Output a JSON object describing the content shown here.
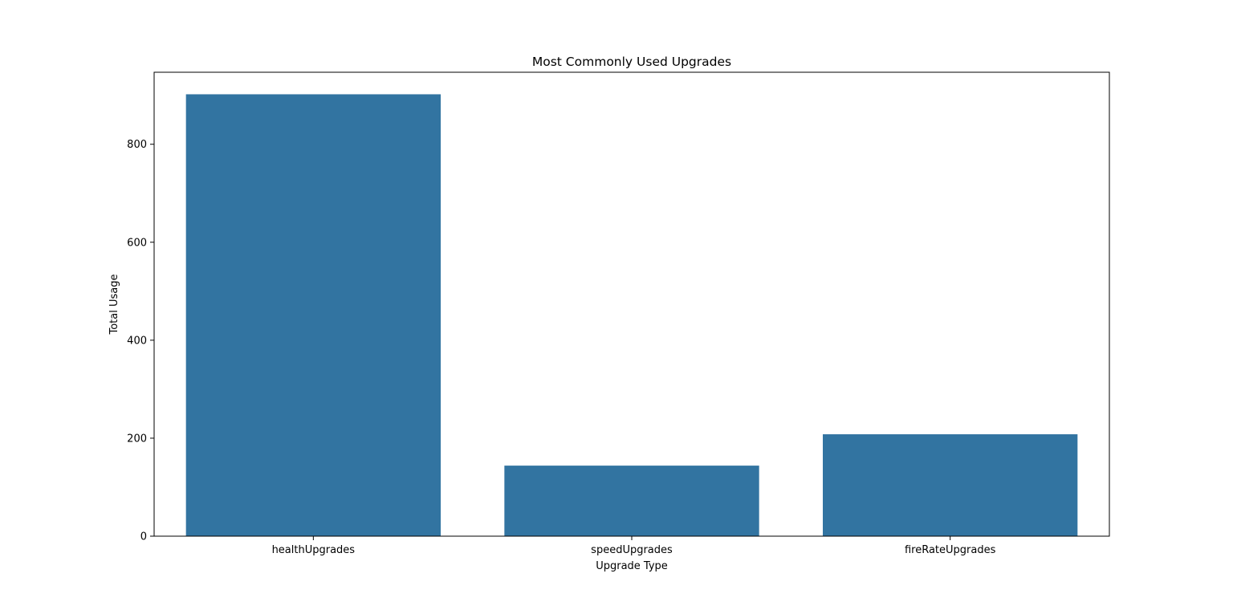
{
  "chart_data": {
    "type": "bar",
    "title": "Most Commonly Used Upgrades",
    "xlabel": "Upgrade Type",
    "ylabel": "Total Usage",
    "categories": [
      "healthUpgrades",
      "speedUpgrades",
      "fireRateUpgrades"
    ],
    "values": [
      902,
      144,
      208
    ],
    "ylim": [
      0,
      947
    ],
    "yticks": [
      0,
      200,
      400,
      600,
      800
    ],
    "grid": false,
    "legend": "none",
    "bar_color": "#3274a1"
  }
}
